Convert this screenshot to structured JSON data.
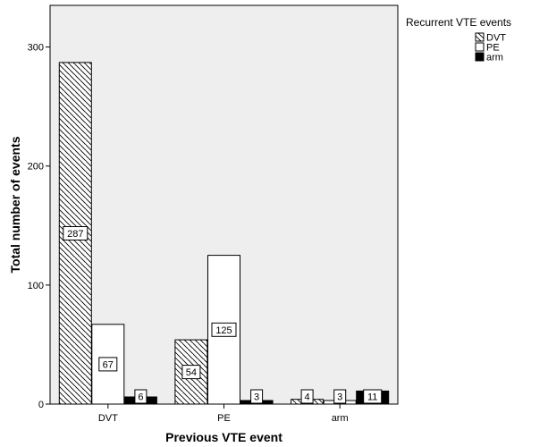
{
  "chart_data": {
    "type": "bar",
    "title": "",
    "xlabel": "Previous VTE event",
    "ylabel": "Total number of events",
    "categories": [
      "DVT",
      "PE",
      "arm"
    ],
    "ylim": [
      0,
      335
    ],
    "yticks": [
      0,
      100,
      200,
      300
    ],
    "grid": false,
    "legend": {
      "title": "Recurrent VTE events",
      "position": "top-right"
    },
    "series": [
      {
        "name": "DVT",
        "values": [
          287,
          54,
          4
        ],
        "fill": "hatch"
      },
      {
        "name": "PE",
        "values": [
          67,
          125,
          3
        ],
        "fill": "#ffffff"
      },
      {
        "name": "arm",
        "values": [
          6,
          3,
          11
        ],
        "fill": "#000000"
      }
    ]
  },
  "colors": {
    "plot_background": "#eeeeee",
    "bar_stroke": "#000000"
  }
}
